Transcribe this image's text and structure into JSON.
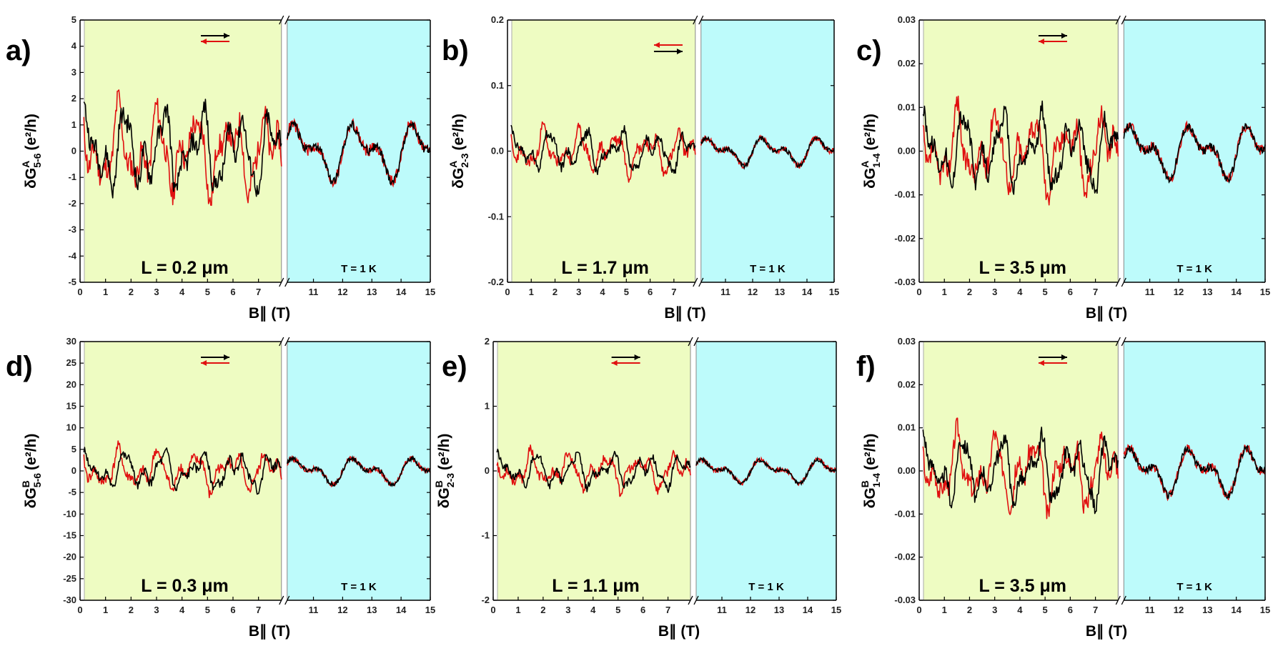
{
  "figure": {
    "x_axis_label": "B∥ (T)",
    "y_unit": "(e²/h)"
  },
  "chart_data": [
    {
      "panel": "a)",
      "type": "line",
      "ylabel_sym": "δG",
      "ylabel_sup": "A",
      "ylabel_sub": "5-6",
      "length_label": "L = 0.2 μm",
      "temp_label": "T = 1 K",
      "ylim": [
        -5,
        5
      ],
      "yticks": [
        -5,
        -4,
        -3,
        -2,
        -1,
        0,
        1,
        2,
        3,
        4,
        5
      ],
      "ytick_labels": [
        "-5",
        "-4",
        "-3",
        "-2",
        "-1",
        "0",
        "1",
        "2",
        "3",
        "4",
        "5"
      ],
      "xticks_left": [
        "0",
        "1",
        "2",
        "3",
        "4",
        "5",
        "6",
        "7"
      ],
      "xticks_right": [
        "11",
        "12",
        "13",
        "14",
        "15"
      ],
      "x_left_range": [
        0,
        7.9
      ],
      "x_right_range": [
        10.1,
        15
      ],
      "arrows": "black right above red left",
      "amp": 1.8,
      "seed": 11
    },
    {
      "panel": "b)",
      "type": "line",
      "ylabel_sym": "δG",
      "ylabel_sup": "A",
      "ylabel_sub": "2-3",
      "length_label": "L = 1.7 μm",
      "temp_label": "T = 1 K",
      "ylim": [
        -0.2,
        0.2
      ],
      "yticks": [
        -0.2,
        -0.1,
        0,
        0.1,
        0.2
      ],
      "ytick_labels": [
        "-0.2",
        "-0.1",
        "0.0",
        "0.1",
        "0.2"
      ],
      "xticks_left": [
        "0",
        "1",
        "2",
        "3",
        "4",
        "5",
        "6",
        "7"
      ],
      "xticks_right": [
        "11",
        "12",
        "13",
        "14",
        "15"
      ],
      "x_left_range": [
        0,
        7.9
      ],
      "x_right_range": [
        10.1,
        15
      ],
      "arrows": "red left above black right",
      "amp": 0.035,
      "seed": 23
    },
    {
      "panel": "c)",
      "type": "line",
      "ylabel_sym": "δG",
      "ylabel_sup": "A",
      "ylabel_sub": "1-4",
      "length_label": "L = 3.5 μm",
      "temp_label": "T = 1 K",
      "ylim": [
        -0.03,
        0.03
      ],
      "yticks": [
        -0.03,
        -0.02,
        -0.01,
        0,
        0.01,
        0.02,
        0.03
      ],
      "ytick_labels": [
        "-0.03",
        "-0.02",
        "-0.01",
        "0.00",
        "0.01",
        "0.02",
        "0.03"
      ],
      "xticks_left": [
        "0",
        "1",
        "2",
        "3",
        "4",
        "5",
        "6",
        "7"
      ],
      "xticks_right": [
        "11",
        "12",
        "13",
        "14",
        "15"
      ],
      "x_left_range": [
        0,
        7.9
      ],
      "x_right_range": [
        10.1,
        15
      ],
      "arrows": "black right above red left",
      "amp": 0.01,
      "seed": 37
    },
    {
      "panel": "d)",
      "type": "line",
      "ylabel_sym": "δG",
      "ylabel_sup": "B",
      "ylabel_sub": "5-6",
      "length_label": "L = 0.3 μm",
      "temp_label": "T = 1 K",
      "ylim": [
        -30,
        30
      ],
      "yticks": [
        -30,
        -25,
        -20,
        -15,
        -10,
        -5,
        0,
        5,
        10,
        15,
        20,
        25,
        30
      ],
      "ytick_labels": [
        "-30",
        "-25",
        "-20",
        "-15",
        "-10",
        "-5",
        "0",
        "5",
        "10",
        "15",
        "20",
        "25",
        "30"
      ],
      "xticks_left": [
        "0",
        "1",
        "2",
        "3",
        "4",
        "5",
        "6",
        "7"
      ],
      "xticks_right": [
        "11",
        "12",
        "13",
        "14",
        "15"
      ],
      "x_left_range": [
        0,
        7.9
      ],
      "x_right_range": [
        10.1,
        15
      ],
      "arrows": "black right above red left",
      "amp": 5,
      "seed": 41
    },
    {
      "panel": "e)",
      "type": "line",
      "ylabel_sym": "δG",
      "ylabel_sup": "B",
      "ylabel_sub": "2-3",
      "length_label": "L = 1.1 μm",
      "temp_label": "T = 1 K",
      "ylim": [
        -2,
        2
      ],
      "yticks": [
        -2,
        -1,
        0,
        1,
        2
      ],
      "ytick_labels": [
        "-2",
        "-1",
        "0",
        "1",
        "2"
      ],
      "xticks_left": [
        "0",
        "1",
        "2",
        "3",
        "4",
        "5",
        "6",
        "7"
      ],
      "xticks_right": [
        "11",
        "12",
        "13",
        "14",
        "15"
      ],
      "x_left_range": [
        0,
        7.9
      ],
      "x_right_range": [
        10.1,
        15
      ],
      "arrows": "black right above red left",
      "amp": 0.3,
      "seed": 53
    },
    {
      "panel": "f)",
      "type": "line",
      "ylabel_sym": "δG",
      "ylabel_sup": "B",
      "ylabel_sub": "1-4",
      "length_label": "L = 3.5 μm",
      "temp_label": "T = 1 K",
      "ylim": [
        -0.03,
        0.03
      ],
      "yticks": [
        -0.03,
        -0.02,
        -0.01,
        0,
        0.01,
        0.02,
        0.03
      ],
      "ytick_labels": [
        "-0.03",
        "-0.02",
        "-0.01",
        "0.00",
        "0.01",
        "0.02",
        "0.03"
      ],
      "xticks_left": [
        "0",
        "1",
        "2",
        "3",
        "4",
        "5",
        "6",
        "7"
      ],
      "xticks_right": [
        "11",
        "12",
        "13",
        "14",
        "15"
      ],
      "x_left_range": [
        0,
        7.9
      ],
      "x_right_range": [
        10.1,
        15
      ],
      "arrows": "black right above red left",
      "amp": 0.009,
      "seed": 67
    }
  ],
  "colors": {
    "left_bg": "#eefcc2",
    "right_bg": "#bdfbfb",
    "trace_up": "#000000",
    "trace_down": "#e01010"
  }
}
